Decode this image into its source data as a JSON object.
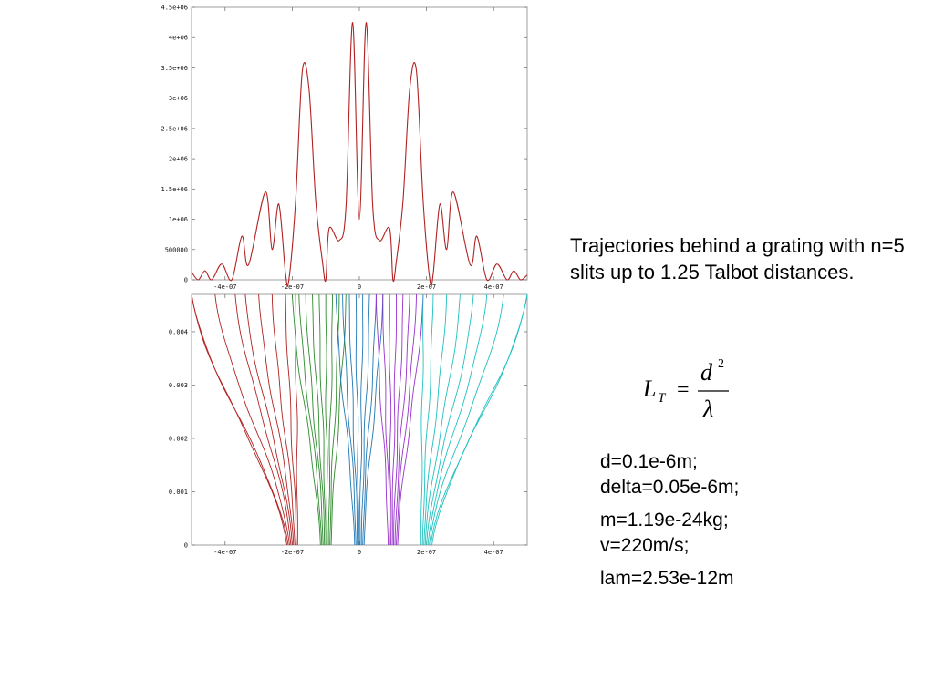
{
  "caption": "Trajectories behind a grating with n=5 slits up to 1.25 Talbot distances.",
  "formula": {
    "lhs_symbol": "L",
    "lhs_subscript": "T",
    "numerator": "d",
    "exponent": "2",
    "denominator": "λ"
  },
  "parameters": [
    "d=0.1e-6m;",
    "delta=0.05e-6m;",
    "m=1.19e-24kg;",
    "v=220m/s;",
    "lam=2.53e-12m"
  ],
  "chart_data": [
    {
      "type": "line",
      "title": "",
      "xlabel": "",
      "ylabel": "",
      "xlim": [
        -5e-07,
        5e-07
      ],
      "ylim": [
        0,
        4500000
      ],
      "x_tick_labels": [
        {
          "value": -4e-07,
          "label": "-4e-07"
        },
        {
          "value": -2e-07,
          "label": "-2e-07"
        },
        {
          "value": 0,
          "label": "0"
        },
        {
          "value": 2e-07,
          "label": "2e-07"
        },
        {
          "value": 4e-07,
          "label": "4e-07"
        }
      ],
      "y_tick_labels": [
        {
          "value": 0,
          "label": "0"
        },
        {
          "value": 500000,
          "label": "500000"
        },
        {
          "value": 1000000,
          "label": "1e+06"
        },
        {
          "value": 1500000,
          "label": "1.5e+06"
        },
        {
          "value": 2000000,
          "label": "2e+06"
        },
        {
          "value": 2500000,
          "label": "2.5e+06"
        },
        {
          "value": 3000000,
          "label": "3e+06"
        },
        {
          "value": 3500000,
          "label": "3.5e+06"
        },
        {
          "value": 4000000,
          "label": "4e+06"
        },
        {
          "value": 4500000,
          "label": "4.5e+06"
        }
      ],
      "series": [
        {
          "color": "#b22222",
          "points": [
            [
              -5e-07,
              130000
            ],
            [
              -4.8e-07,
              0
            ],
            [
              -4.6e-07,
              150000
            ],
            [
              -4.4e-07,
              0
            ],
            [
              -4.1e-07,
              260000
            ],
            [
              -3.8e-07,
              0
            ],
            [
              -3.5e-07,
              720000
            ],
            [
              -3.3e-07,
              250000
            ],
            [
              -2.8e-07,
              1450000
            ],
            [
              -2.6e-07,
              500000
            ],
            [
              -2.4e-07,
              1250000
            ],
            [
              -2.2e-07,
              100000
            ],
            [
              -2.1e-07,
              0
            ],
            [
              -1.9e-07,
              1300000
            ],
            [
              -1.7e-07,
              3450000
            ],
            [
              -1.5e-07,
              3150000
            ],
            [
              -1.3e-07,
              1300000
            ],
            [
              -1.1e-07,
              300000
            ],
            [
              -1e-07,
              0
            ],
            [
              -9e-08,
              850000
            ],
            [
              -6e-08,
              650000
            ],
            [
              -4e-08,
              1200000
            ],
            [
              -2e-08,
              4250000
            ],
            [
              0,
              1000000
            ],
            [
              2e-08,
              4250000
            ],
            [
              4e-08,
              1200000
            ],
            [
              6e-08,
              650000
            ],
            [
              9e-08,
              850000
            ],
            [
              1e-07,
              0
            ],
            [
              1.1e-07,
              300000
            ],
            [
              1.3e-07,
              1300000
            ],
            [
              1.5e-07,
              3150000
            ],
            [
              1.7e-07,
              3450000
            ],
            [
              1.9e-07,
              1300000
            ],
            [
              2.1e-07,
              0
            ],
            [
              2.2e-07,
              100000
            ],
            [
              2.4e-07,
              1250000
            ],
            [
              2.6e-07,
              500000
            ],
            [
              2.8e-07,
              1450000
            ],
            [
              3.3e-07,
              250000
            ],
            [
              3.5e-07,
              720000
            ],
            [
              3.8e-07,
              0
            ],
            [
              4.1e-07,
              260000
            ],
            [
              4.4e-07,
              0
            ],
            [
              4.6e-07,
              150000
            ],
            [
              4.8e-07,
              0
            ],
            [
              5e-07,
              80000
            ]
          ]
        }
      ]
    },
    {
      "type": "line",
      "title": "",
      "xlabel": "",
      "ylabel": "",
      "xlim": [
        -5e-07,
        5e-07
      ],
      "ylim": [
        0,
        0.0047
      ],
      "x_tick_labels": [
        {
          "value": -4e-07,
          "label": "-4e-07"
        },
        {
          "value": -2e-07,
          "label": "-2e-07"
        },
        {
          "value": 0,
          "label": "0"
        },
        {
          "value": 2e-07,
          "label": "2e-07"
        },
        {
          "value": 4e-07,
          "label": "4e-07"
        }
      ],
      "y_tick_labels": [
        {
          "value": 0,
          "label": "0"
        },
        {
          "value": 0.001,
          "label": "0.001"
        },
        {
          "value": 0.002,
          "label": "0.002"
        },
        {
          "value": 0.003,
          "label": "0.003"
        },
        {
          "value": 0.004,
          "label": "0.004"
        }
      ],
      "series": [
        {
          "color": "#b22222",
          "x_start": -2e-07,
          "x_end": [
            -5e-07,
            -5e-07,
            -4.3e-07,
            -3.7e-07,
            -3.4e-07,
            -3e-07,
            -2.6e-07,
            -2.2e-07,
            -1.9e-07
          ]
        },
        {
          "color": "#2e8b2e",
          "x_start": -1e-07,
          "x_end": [
            -2e-07,
            -1.8e-07,
            -1.6e-07,
            -1.4e-07,
            -1.2e-07,
            -1e-07,
            -8e-08,
            -6e-08,
            -4e-08
          ]
        },
        {
          "color": "#1f77b4",
          "x_start": 0,
          "x_end": [
            -7e-08,
            -5e-08,
            -3e-08,
            -1e-08,
            1e-08,
            3e-08,
            5e-08,
            7e-08
          ]
        },
        {
          "color": "#9932cc",
          "x_start": 1e-07,
          "x_end": [
            5e-08,
            7e-08,
            9e-08,
            1.1e-07,
            1.3e-07,
            1.5e-07,
            1.7e-07,
            1.9e-07
          ]
        },
        {
          "color": "#20c0c0",
          "x_start": 2e-07,
          "x_end": [
            1.9e-07,
            2.2e-07,
            2.6e-07,
            3e-07,
            3.4e-07,
            3.8e-07,
            4.3e-07,
            5e-07,
            5e-07
          ]
        }
      ],
      "series_note": "Each series is a bundle of trajectories starting at x_start at height 0 and reaching x_end at the top of the plot (height 0.0047)."
    }
  ]
}
